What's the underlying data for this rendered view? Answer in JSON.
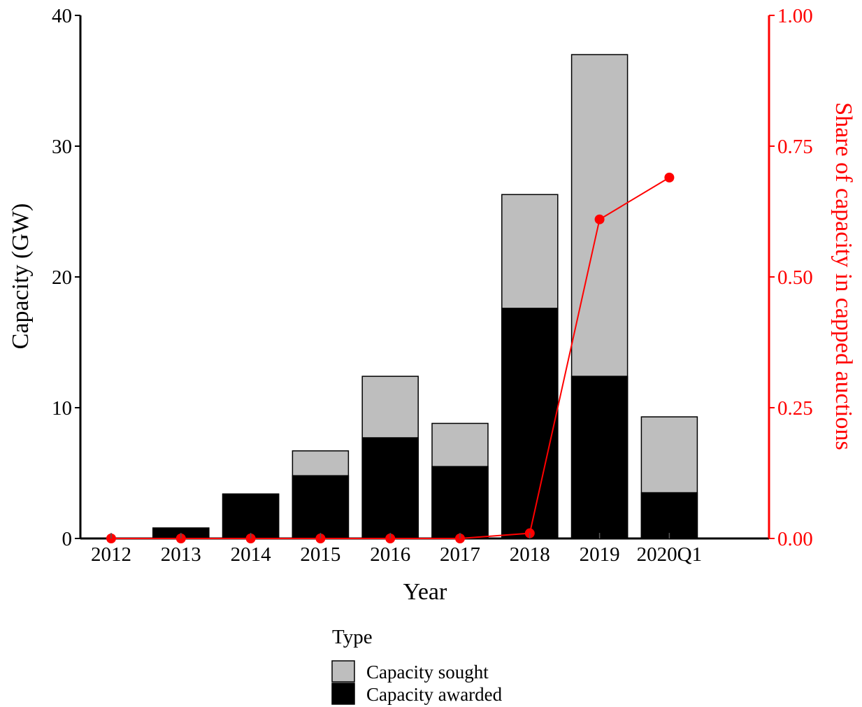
{
  "chart_data": {
    "type": "bar",
    "categories": [
      "2012",
      "2013",
      "2014",
      "2015",
      "2016",
      "2017",
      "2018",
      "2019",
      "2020Q1"
    ],
    "series": [
      {
        "name": "Capacity sought",
        "values": [
          0,
          0.8,
          3.4,
          6.7,
          12.4,
          8.8,
          26.3,
          37.0,
          9.3
        ],
        "color": "#bebebe",
        "kind": "bar"
      },
      {
        "name": "Capacity awarded",
        "values": [
          0,
          0.8,
          3.4,
          4.8,
          7.7,
          5.5,
          17.6,
          12.4,
          3.5
        ],
        "color": "#000000",
        "kind": "bar"
      },
      {
        "name": "",
        "values": [
          0,
          0,
          0,
          0,
          0,
          0,
          0.01,
          0.61,
          0.69
        ],
        "color": "#ff0000",
        "kind": "line",
        "axis": "right"
      }
    ],
    "bar_mode": "overlay",
    "xlabel": "Year",
    "ylabel": "Capacity (GW)",
    "y2label": "Share of capacity in capped auctions",
    "ylim": [
      0,
      40
    ],
    "y2lim": [
      0,
      1
    ],
    "yticks": [
      "0",
      "10",
      "20",
      "30",
      "40"
    ],
    "y2ticks": [
      "0.00",
      "0.25",
      "0.50",
      "0.75",
      "1.00"
    ],
    "grid": false,
    "legend": {
      "title": "Type",
      "position": "bottom",
      "items": [
        "Capacity sought",
        "Capacity awarded"
      ]
    },
    "colors": {
      "axis_left": "#000000",
      "axis_right": "#ff0000"
    }
  }
}
